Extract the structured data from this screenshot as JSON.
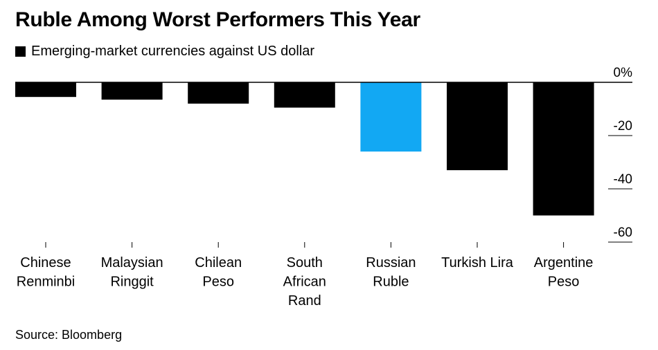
{
  "title": "Ruble Among Worst Performers This Year",
  "legend": {
    "label": "Emerging-market currencies against US dollar",
    "color": "#000000"
  },
  "source": "Source: Bloomberg",
  "chart_data": {
    "type": "bar",
    "categories": [
      [
        "Chinese",
        "Renminbi"
      ],
      [
        "Malaysian",
        "Ringgit"
      ],
      [
        "Chilean",
        "Peso"
      ],
      [
        "South",
        "African",
        "Rand"
      ],
      [
        "Russian",
        "Ruble"
      ],
      [
        "Turkish Lira"
      ],
      [
        "Argentine",
        "Peso"
      ]
    ],
    "series": [
      {
        "name": "Emerging-market currencies against US dollar",
        "values": [
          -5.5,
          -6.5,
          -8,
          -9.5,
          -26,
          -33,
          -50
        ]
      }
    ],
    "highlight_index": 4,
    "colors": {
      "default": "#000000",
      "highlight": "#12a8f3",
      "axis": "#000000",
      "grid": "#dddddd"
    },
    "yticks": [
      0,
      -20,
      -40,
      -60
    ],
    "ytick_labels": [
      "0%",
      "-20",
      "-40",
      "-60"
    ],
    "ylim": [
      -60,
      0
    ],
    "xlabel": "",
    "ylabel": ""
  }
}
